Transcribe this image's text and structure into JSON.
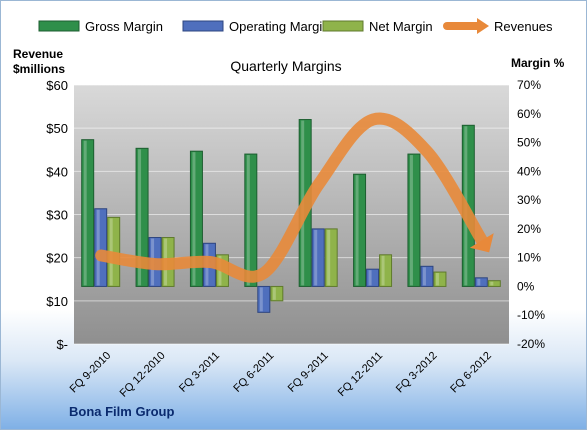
{
  "chart_data": {
    "type": "bar",
    "title": "Quarterly Margins",
    "company": "Bona Film Group",
    "left_axis_label_line1": "Revenue",
    "left_axis_label_line2": "$millions",
    "right_axis_label": "Margin %",
    "categories": [
      "FQ 9-2010",
      "FQ 12-2010",
      "FQ 3-2011",
      "FQ 6-2011",
      "FQ 9-2011",
      "FQ 12-2011",
      "FQ 3-2012",
      "FQ 6-2012"
    ],
    "left_ylim": [
      0,
      60
    ],
    "left_ticks": [
      0,
      10,
      20,
      30,
      40,
      50,
      60
    ],
    "left_tick_labels": [
      "$-",
      "$10",
      "$20",
      "$30",
      "$40",
      "$50",
      "$60"
    ],
    "right_ylim": [
      -20,
      70
    ],
    "right_ticks": [
      -20,
      -10,
      0,
      10,
      20,
      30,
      40,
      50,
      60,
      70
    ],
    "right_tick_labels": [
      "-20%",
      "-10%",
      "0%",
      "10%",
      "20%",
      "30%",
      "40%",
      "50%",
      "60%",
      "70%"
    ],
    "series": [
      {
        "name": "Gross Margin",
        "axis": "right",
        "type": "bar",
        "color": "#2f8f4a",
        "values": [
          51,
          48,
          47,
          46,
          58,
          39,
          46,
          56
        ]
      },
      {
        "name": "Operating Margin",
        "axis": "right",
        "type": "bar",
        "color": "#4f6fbd",
        "values": [
          27,
          17,
          15,
          -9,
          20,
          6,
          7,
          3
        ]
      },
      {
        "name": "Net Margin",
        "axis": "right",
        "type": "bar",
        "color": "#8fb34a",
        "values": [
          24,
          17,
          11,
          -5,
          20,
          11,
          5,
          2
        ]
      },
      {
        "name": "Revenues",
        "axis": "left",
        "type": "line",
        "color": "#e8893a",
        "values": [
          20.5,
          18.5,
          19.0,
          16.5,
          37.0,
          52.0,
          44.5,
          24.0
        ]
      }
    ],
    "grid": true,
    "legend_position": "top"
  }
}
